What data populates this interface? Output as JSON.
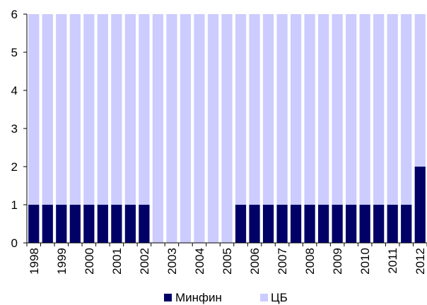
{
  "chart_data": {
    "type": "bar",
    "stacked": true,
    "categories": [
      "1998",
      "",
      "1999",
      "",
      "2000",
      "",
      "2001",
      "",
      "2002",
      "",
      "2003",
      "",
      "2004",
      "",
      "2005",
      "",
      "2006",
      "",
      "2007",
      "",
      "2008",
      "",
      "2009",
      "",
      "2010",
      "",
      "2011",
      "",
      "2012"
    ],
    "series": [
      {
        "name": "Минфин",
        "color": "#000066",
        "values": [
          1,
          1,
          1,
          1,
          1,
          1,
          1,
          1,
          1,
          0,
          0,
          0,
          0,
          0,
          0,
          1,
          1,
          1,
          1,
          1,
          1,
          1,
          1,
          1,
          1,
          1,
          1,
          1,
          2
        ]
      },
      {
        "name": "ЦБ",
        "color": "#ccccff",
        "values": [
          5,
          5,
          5,
          5,
          5,
          5,
          5,
          5,
          5,
          6,
          6,
          6,
          6,
          6,
          6,
          5,
          5,
          5,
          5,
          5,
          5,
          5,
          5,
          5,
          5,
          5,
          5,
          5,
          4
        ]
      }
    ],
    "ylim": [
      0,
      6
    ],
    "yticks": [
      "0",
      "1",
      "2",
      "3",
      "4",
      "5",
      "6"
    ],
    "grid": false,
    "legend_position": "bottom"
  }
}
